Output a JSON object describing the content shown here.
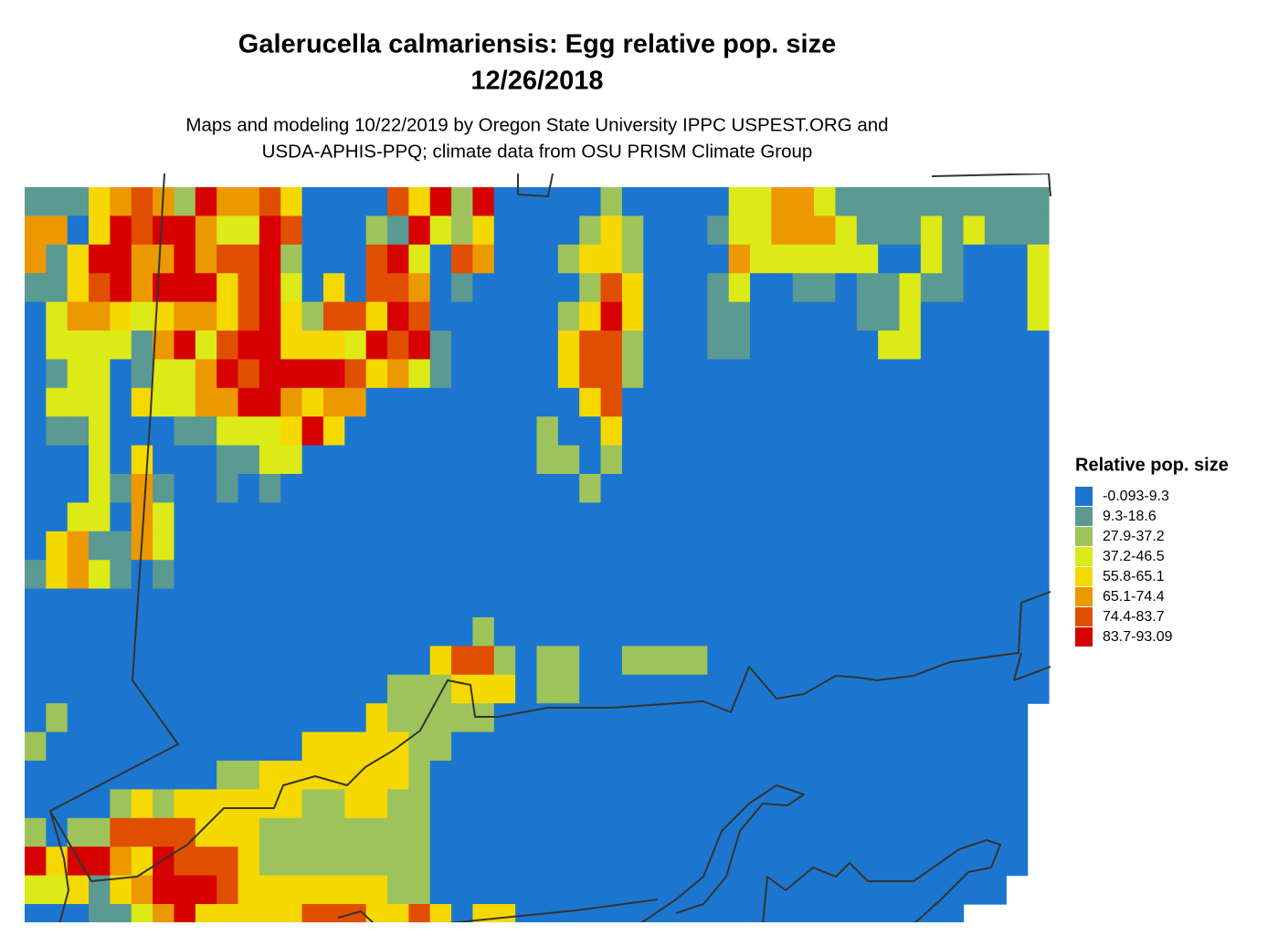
{
  "map": {
    "title": [
      "Galerucella calmariensis: Egg relative pop. size",
      "12/26/2018"
    ],
    "subtitle": [
      "Maps and modeling 10/22/2019 by Oregon State University IPPC USPEST.ORG and",
      "USDA-APHIS-PPQ; climate data from OSU PRISM Climate Group"
    ],
    "legend": {
      "title": "Relative pop. size",
      "items": [
        {
          "label": "-0.093-9.3",
          "color": "#1c76cf"
        },
        {
          "label": "9.3-18.6",
          "color": "#5b9993"
        },
        {
          "label": "27.9-37.2",
          "color": "#9fc35b"
        },
        {
          "label": "37.2-46.5",
          "color": "#dcea17"
        },
        {
          "label": "55.8-65.1",
          "color": "#f5d800"
        },
        {
          "label": "65.1-74.4",
          "color": "#ec9800"
        },
        {
          "label": "74.4-83.7",
          "color": "#e04f00"
        },
        {
          "label": "83.7-93.09",
          "color": "#d60000"
        }
      ]
    },
    "cells": [
      [
        1,
        1,
        1,
        4,
        5,
        6,
        5,
        2,
        7,
        5,
        5,
        6,
        4,
        0,
        0,
        0,
        0,
        6,
        4,
        7,
        2,
        7,
        0,
        0,
        0,
        0,
        0,
        2,
        0,
        0,
        0,
        0,
        0,
        3,
        3,
        5,
        5,
        3,
        1,
        1,
        1,
        1,
        1,
        1,
        1,
        1,
        1,
        1
      ],
      [
        5,
        5,
        0,
        4,
        7,
        6,
        7,
        7,
        5,
        3,
        3,
        7,
        6,
        0,
        0,
        0,
        2,
        1,
        7,
        3,
        2,
        4,
        0,
        0,
        0,
        0,
        2,
        4,
        2,
        0,
        0,
        0,
        1,
        3,
        3,
        5,
        5,
        5,
        3,
        1,
        1,
        1,
        3,
        1,
        3,
        1,
        1,
        1
      ],
      [
        5,
        1,
        4,
        7,
        7,
        5,
        5,
        7,
        5,
        6,
        6,
        7,
        2,
        0,
        0,
        0,
        6,
        7,
        3,
        0,
        6,
        5,
        0,
        0,
        0,
        2,
        4,
        4,
        2,
        0,
        0,
        0,
        0,
        5,
        3,
        3,
        3,
        3,
        3,
        3,
        0,
        0,
        3,
        1,
        0,
        0,
        0,
        3
      ],
      [
        1,
        1,
        4,
        6,
        7,
        5,
        7,
        7,
        7,
        4,
        6,
        7,
        3,
        0,
        4,
        0,
        6,
        6,
        5,
        0,
        1,
        0,
        0,
        0,
        0,
        0,
        2,
        6,
        4,
        0,
        0,
        0,
        1,
        3,
        0,
        0,
        1,
        1,
        0,
        1,
        1,
        3,
        1,
        1,
        0,
        0,
        0,
        3
      ],
      [
        0,
        3,
        5,
        5,
        4,
        3,
        4,
        5,
        5,
        4,
        6,
        7,
        4,
        2,
        6,
        6,
        4,
        7,
        6,
        0,
        0,
        0,
        0,
        0,
        0,
        2,
        4,
        7,
        4,
        0,
        0,
        0,
        1,
        1,
        0,
        0,
        0,
        0,
        0,
        1,
        1,
        3,
        0,
        0,
        0,
        0,
        0,
        3
      ],
      [
        0,
        3,
        3,
        3,
        3,
        1,
        5,
        7,
        3,
        6,
        7,
        7,
        4,
        4,
        4,
        3,
        7,
        6,
        7,
        1,
        0,
        0,
        0,
        0,
        0,
        4,
        6,
        6,
        2,
        0,
        0,
        0,
        1,
        1,
        0,
        0,
        0,
        0,
        0,
        0,
        3,
        3,
        0,
        0,
        0,
        0,
        0,
        0
      ],
      [
        0,
        1,
        3,
        3,
        0,
        1,
        3,
        3,
        5,
        7,
        6,
        7,
        7,
        7,
        7,
        6,
        4,
        5,
        3,
        1,
        0,
        0,
        0,
        0,
        0,
        4,
        6,
        6,
        2,
        0,
        0,
        0,
        0,
        0,
        0,
        0,
        0,
        0,
        0,
        0,
        0,
        0,
        0,
        0,
        0,
        0,
        0,
        0
      ],
      [
        0,
        3,
        3,
        3,
        0,
        4,
        3,
        3,
        5,
        5,
        7,
        7,
        5,
        4,
        5,
        5,
        0,
        0,
        0,
        0,
        0,
        0,
        0,
        0,
        0,
        0,
        4,
        6,
        0,
        0,
        0,
        0,
        0,
        0,
        0,
        0,
        0,
        0,
        0,
        0,
        0,
        0,
        0,
        0,
        0,
        0,
        0,
        0
      ],
      [
        0,
        1,
        1,
        3,
        0,
        0,
        0,
        1,
        1,
        3,
        3,
        3,
        4,
        7,
        4,
        0,
        0,
        0,
        0,
        0,
        0,
        0,
        0,
        0,
        2,
        0,
        0,
        4,
        0,
        0,
        0,
        0,
        0,
        0,
        0,
        0,
        0,
        0,
        0,
        0,
        0,
        0,
        0,
        0,
        0,
        0,
        0,
        0
      ],
      [
        0,
        0,
        0,
        3,
        0,
        4,
        0,
        0,
        0,
        1,
        1,
        3,
        3,
        0,
        0,
        0,
        0,
        0,
        0,
        0,
        0,
        0,
        0,
        0,
        2,
        2,
        0,
        2,
        0,
        0,
        0,
        0,
        0,
        0,
        0,
        0,
        0,
        0,
        0,
        0,
        0,
        0,
        0,
        0,
        0,
        0,
        0,
        0
      ],
      [
        0,
        0,
        0,
        3,
        1,
        5,
        1,
        0,
        0,
        1,
        0,
        1,
        0,
        0,
        0,
        0,
        0,
        0,
        0,
        0,
        0,
        0,
        0,
        0,
        0,
        0,
        2,
        0,
        0,
        0,
        0,
        0,
        0,
        0,
        0,
        0,
        0,
        0,
        0,
        0,
        0,
        0,
        0,
        0,
        0,
        0,
        0,
        0
      ],
      [
        0,
        0,
        3,
        3,
        0,
        5,
        3,
        0,
        0,
        0,
        0,
        0,
        0,
        0,
        0,
        0,
        0,
        0,
        0,
        0,
        0,
        0,
        0,
        0,
        0,
        0,
        0,
        0,
        0,
        0,
        0,
        0,
        0,
        0,
        0,
        0,
        0,
        0,
        0,
        0,
        0,
        0,
        0,
        0,
        0,
        0,
        0,
        0
      ],
      [
        0,
        4,
        5,
        1,
        1,
        5,
        3,
        0,
        0,
        0,
        0,
        0,
        0,
        0,
        0,
        0,
        0,
        0,
        0,
        0,
        0,
        0,
        0,
        0,
        0,
        0,
        0,
        0,
        0,
        0,
        0,
        0,
        0,
        0,
        0,
        0,
        0,
        0,
        0,
        0,
        0,
        0,
        0,
        0,
        0,
        0,
        0,
        0
      ],
      [
        1,
        4,
        5,
        3,
        1,
        0,
        1,
        0,
        0,
        0,
        0,
        0,
        0,
        0,
        0,
        0,
        0,
        0,
        0,
        0,
        0,
        0,
        0,
        0,
        0,
        0,
        0,
        0,
        0,
        0,
        0,
        0,
        0,
        0,
        0,
        0,
        0,
        0,
        0,
        0,
        0,
        0,
        0,
        0,
        0,
        0,
        0,
        0
      ],
      [
        0,
        0,
        0,
        0,
        0,
        0,
        0,
        0,
        0,
        0,
        0,
        0,
        0,
        0,
        0,
        0,
        0,
        0,
        0,
        0,
        0,
        0,
        0,
        0,
        0,
        0,
        0,
        0,
        0,
        0,
        0,
        0,
        0,
        0,
        0,
        0,
        0,
        0,
        0,
        0,
        0,
        0,
        0,
        0,
        0,
        0,
        0,
        0
      ],
      [
        0,
        0,
        0,
        0,
        0,
        0,
        0,
        0,
        0,
        0,
        0,
        0,
        0,
        0,
        0,
        0,
        0,
        0,
        0,
        0,
        0,
        2,
        0,
        0,
        0,
        0,
        0,
        0,
        0,
        0,
        0,
        0,
        0,
        0,
        0,
        0,
        0,
        0,
        0,
        0,
        0,
        0,
        0,
        0,
        0,
        0,
        0,
        0
      ],
      [
        0,
        0,
        0,
        0,
        0,
        0,
        0,
        0,
        0,
        0,
        0,
        0,
        0,
        0,
        0,
        0,
        0,
        0,
        0,
        4,
        6,
        6,
        2,
        0,
        2,
        2,
        0,
        0,
        2,
        2,
        2,
        2,
        0,
        0,
        0,
        0,
        0,
        0,
        0,
        0,
        0,
        0,
        0,
        0,
        0,
        0,
        0,
        0
      ],
      [
        0,
        0,
        0,
        0,
        0,
        0,
        0,
        0,
        0,
        0,
        0,
        0,
        0,
        0,
        0,
        0,
        0,
        2,
        2,
        2,
        4,
        4,
        4,
        0,
        2,
        2,
        0,
        0,
        0,
        0,
        0,
        0,
        0,
        0,
        0,
        0,
        0,
        0,
        0,
        0,
        0,
        0,
        0,
        0,
        0,
        0,
        0,
        0
      ],
      [
        0,
        2,
        0,
        0,
        0,
        0,
        0,
        0,
        0,
        0,
        0,
        0,
        0,
        0,
        0,
        0,
        4,
        2,
        2,
        2,
        2,
        2,
        0,
        0,
        0,
        0,
        0,
        0,
        0,
        0,
        0,
        0,
        0,
        0,
        0,
        0,
        0,
        0,
        0,
        0,
        0,
        0,
        0,
        0,
        0,
        0,
        0,
        null
      ],
      [
        2,
        0,
        0,
        0,
        0,
        0,
        0,
        0,
        0,
        0,
        0,
        0,
        0,
        4,
        4,
        4,
        4,
        4,
        2,
        2,
        0,
        0,
        0,
        0,
        0,
        0,
        0,
        0,
        0,
        0,
        0,
        0,
        0,
        0,
        0,
        0,
        0,
        0,
        0,
        0,
        0,
        0,
        0,
        0,
        0,
        0,
        0,
        null
      ],
      [
        0,
        0,
        0,
        0,
        0,
        0,
        0,
        0,
        0,
        2,
        2,
        4,
        4,
        4,
        4,
        4,
        4,
        4,
        2,
        0,
        0,
        0,
        0,
        0,
        0,
        0,
        0,
        0,
        0,
        0,
        0,
        0,
        0,
        0,
        0,
        0,
        0,
        0,
        0,
        0,
        0,
        0,
        0,
        0,
        0,
        0,
        0,
        null
      ],
      [
        0,
        0,
        0,
        0,
        2,
        4,
        2,
        4,
        4,
        4,
        4,
        4,
        4,
        2,
        2,
        4,
        4,
        2,
        2,
        0,
        0,
        0,
        0,
        0,
        0,
        0,
        0,
        0,
        0,
        0,
        0,
        0,
        0,
        0,
        0,
        0,
        0,
        0,
        0,
        0,
        0,
        0,
        0,
        0,
        0,
        0,
        0,
        null
      ],
      [
        2,
        0,
        2,
        2,
        6,
        6,
        6,
        6,
        4,
        4,
        4,
        2,
        2,
        2,
        2,
        2,
        2,
        2,
        2,
        0,
        0,
        0,
        0,
        0,
        0,
        0,
        0,
        0,
        0,
        0,
        0,
        0,
        0,
        0,
        0,
        0,
        0,
        0,
        0,
        0,
        0,
        0,
        0,
        0,
        0,
        0,
        0,
        null
      ],
      [
        7,
        4,
        7,
        7,
        5,
        4,
        7,
        6,
        6,
        6,
        4,
        2,
        2,
        2,
        2,
        2,
        2,
        2,
        2,
        0,
        0,
        0,
        0,
        0,
        0,
        0,
        0,
        0,
        0,
        0,
        0,
        0,
        0,
        0,
        0,
        0,
        0,
        0,
        0,
        0,
        0,
        0,
        0,
        0,
        0,
        0,
        0,
        null
      ],
      [
        3,
        3,
        4,
        1,
        4,
        5,
        7,
        7,
        7,
        6,
        4,
        4,
        4,
        4,
        4,
        4,
        4,
        2,
        2,
        0,
        0,
        0,
        0,
        0,
        0,
        0,
        0,
        0,
        0,
        0,
        0,
        0,
        0,
        0,
        0,
        0,
        0,
        0,
        0,
        0,
        0,
        0,
        0,
        0,
        0,
        0,
        null,
        null
      ],
      [
        0,
        0,
        0,
        1,
        1,
        3,
        5,
        7,
        4,
        4,
        4,
        4,
        4,
        6,
        6,
        6,
        4,
        4,
        6,
        4,
        0,
        4,
        4,
        0,
        0,
        0,
        0,
        0,
        0,
        0,
        0,
        0,
        0,
        0,
        0,
        0,
        0,
        0,
        0,
        0,
        0,
        0,
        0,
        0,
        null,
        null,
        null,
        null
      ]
    ]
  }
}
